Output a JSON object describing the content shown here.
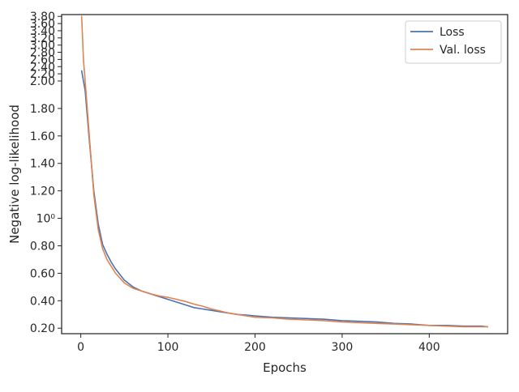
{
  "chart_data": {
    "type": "line",
    "xlabel": "Epochs",
    "ylabel": "Negative log-likelihood",
    "xlim": [
      -22,
      490
    ],
    "ylim": [
      0.16,
      3.85
    ],
    "y_scale": "symlog (linear below 2, compressed above)",
    "x_ticks": [
      0,
      100,
      200,
      300,
      400
    ],
    "y_ticks": [
      {
        "value": 0.2,
        "label": "0.20"
      },
      {
        "value": 0.4,
        "label": "0.40"
      },
      {
        "value": 0.6,
        "label": "0.60"
      },
      {
        "value": 0.8,
        "label": "0.80"
      },
      {
        "value": 1.0,
        "label": "10⁰"
      },
      {
        "value": 1.2,
        "label": "1.20"
      },
      {
        "value": 1.4,
        "label": "1.40"
      },
      {
        "value": 1.6,
        "label": "1.60"
      },
      {
        "value": 1.8,
        "label": "1.80"
      },
      {
        "value": 2.0,
        "label": "2.00"
      },
      {
        "value": 2.2,
        "label": "2.20"
      },
      {
        "value": 2.4,
        "label": "2.40"
      },
      {
        "value": 2.6,
        "label": "2.60"
      },
      {
        "value": 2.8,
        "label": "2.80"
      },
      {
        "value": 3.0,
        "label": "3.00"
      },
      {
        "value": 3.2,
        "label": "3.20"
      },
      {
        "value": 3.4,
        "label": "3.40"
      },
      {
        "value": 3.6,
        "label": "3.60"
      },
      {
        "value": 3.8,
        "label": "3.80"
      }
    ],
    "legend": {
      "position": "top-right",
      "entries": [
        "Loss",
        "Val. loss"
      ]
    },
    "grid": false,
    "series": [
      {
        "name": "Loss",
        "color": "#4c72b0",
        "x": [
          1,
          5,
          10,
          15,
          20,
          25,
          30,
          35,
          40,
          50,
          60,
          70,
          80,
          90,
          100,
          110,
          120,
          130,
          140,
          150,
          160,
          170,
          180,
          190,
          200,
          220,
          240,
          260,
          280,
          300,
          320,
          340,
          360,
          380,
          400,
          420,
          440,
          460,
          467
        ],
        "y": [
          2.28,
          1.93,
          1.55,
          1.2,
          0.96,
          0.81,
          0.74,
          0.68,
          0.63,
          0.55,
          0.5,
          0.47,
          0.45,
          0.43,
          0.41,
          0.39,
          0.37,
          0.35,
          0.34,
          0.33,
          0.32,
          0.31,
          0.3,
          0.295,
          0.29,
          0.28,
          0.275,
          0.27,
          0.265,
          0.255,
          0.25,
          0.245,
          0.235,
          0.23,
          0.22,
          0.22,
          0.215,
          0.215,
          0.21
        ]
      },
      {
        "name": "Val. loss",
        "color": "#dd8452",
        "x": [
          1,
          3,
          5,
          10,
          15,
          20,
          25,
          30,
          35,
          40,
          50,
          60,
          70,
          80,
          90,
          100,
          110,
          120,
          130,
          140,
          150,
          160,
          170,
          180,
          190,
          200,
          220,
          240,
          260,
          280,
          300,
          320,
          340,
          360,
          380,
          400,
          420,
          440,
          460,
          467
        ],
        "y": [
          3.8,
          2.6,
          2.0,
          1.58,
          1.17,
          0.92,
          0.78,
          0.7,
          0.65,
          0.6,
          0.53,
          0.49,
          0.47,
          0.45,
          0.435,
          0.425,
          0.41,
          0.395,
          0.375,
          0.36,
          0.34,
          0.325,
          0.31,
          0.3,
          0.29,
          0.28,
          0.275,
          0.265,
          0.26,
          0.255,
          0.245,
          0.24,
          0.235,
          0.23,
          0.225,
          0.22,
          0.215,
          0.21,
          0.21,
          0.21
        ]
      }
    ]
  }
}
